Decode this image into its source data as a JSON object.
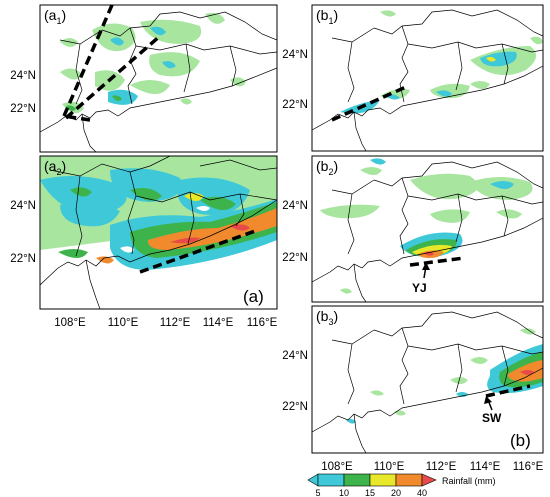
{
  "figure": {
    "group_labels": {
      "a": "(a)",
      "b": "(b)"
    },
    "panels": [
      {
        "id": "a1",
        "label_main": "a",
        "label_sub": "1",
        "annotation": ""
      },
      {
        "id": "a2",
        "label_main": "a",
        "label_sub": "2",
        "annotation": ""
      },
      {
        "id": "b1",
        "label_main": "b",
        "label_sub": "1",
        "annotation": ""
      },
      {
        "id": "b2",
        "label_main": "b",
        "label_sub": "2",
        "annotation": "YJ"
      },
      {
        "id": "b3",
        "label_main": "b",
        "label_sub": "3",
        "annotation": "SW"
      }
    ],
    "lat_ticks": [
      "24°N",
      "22°N"
    ],
    "lon_ticks": [
      "108°E",
      "110°E",
      "112°E",
      "114°E",
      "116°E"
    ],
    "colorbar": {
      "title": "Rainfall (mm)",
      "tick_labels": [
        "5",
        "10",
        "15",
        "20",
        "40"
      ],
      "colors": [
        "#3ec8d8",
        "#3cb44b",
        "#e8e82a",
        "#f08a2c",
        "#e84a4a"
      ]
    },
    "colors": {
      "light_green": "#a8e6a0",
      "cyan": "#3ec8d8",
      "green": "#3cb44b",
      "yellow": "#e8e82a",
      "orange": "#f08a2c",
      "red": "#e84a4a"
    }
  }
}
